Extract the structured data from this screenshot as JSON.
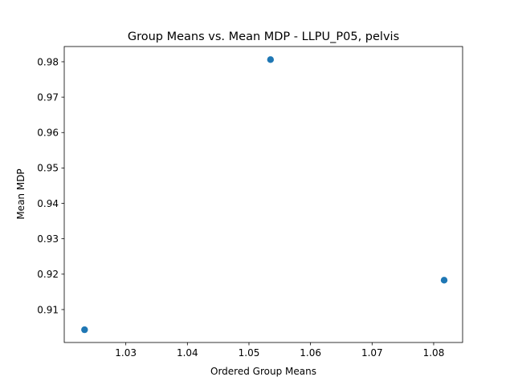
{
  "chart_data": {
    "type": "scatter",
    "title": "Group Means vs. Mean MDP - LLPU_P05, pelvis",
    "xlabel": "Ordered Group Means",
    "ylabel": "Mean MDP",
    "xlim": [
      1.02,
      1.0847
    ],
    "ylim": [
      0.9007,
      0.9843
    ],
    "xticks": [
      1.03,
      1.04,
      1.05,
      1.06,
      1.07,
      1.08
    ],
    "xtick_labels": [
      "1.03",
      "1.04",
      "1.05",
      "1.06",
      "1.07",
      "1.08"
    ],
    "yticks": [
      0.91,
      0.92,
      0.93,
      0.94,
      0.95,
      0.96,
      0.97,
      0.98
    ],
    "ytick_labels": [
      "0.91",
      "0.92",
      "0.93",
      "0.94",
      "0.95",
      "0.96",
      "0.97",
      "0.98"
    ],
    "grid": false,
    "series": [
      {
        "color": "#1f77b4",
        "points": [
          {
            "x": 1.0233,
            "y": 0.9043
          },
          {
            "x": 1.0535,
            "y": 0.9806
          },
          {
            "x": 1.0817,
            "y": 0.9183
          }
        ]
      }
    ]
  }
}
